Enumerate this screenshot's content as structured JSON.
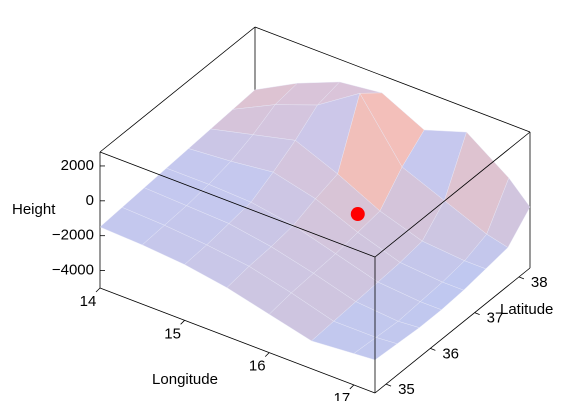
{
  "chart_data": {
    "type": "surface",
    "x_label": "Longitude",
    "y_label": "Latitude",
    "z_label": "Height",
    "xlim": [
      14,
      17.25
    ],
    "ylim": [
      34.75,
      38.25
    ],
    "zlim": [
      -5000,
      2800
    ],
    "xticks": [
      14,
      15,
      16,
      17
    ],
    "yticks": [
      35,
      36,
      37,
      38
    ],
    "zticks": [
      {
        "value": -4000,
        "label": "−4000"
      },
      {
        "value": -2000,
        "label": "−2000"
      },
      0,
      2000
    ],
    "x": [
      14,
      14.5,
      15,
      15.5,
      16,
      16.5,
      17,
      17.25
    ],
    "y": [
      34.75,
      35.25,
      35.75,
      36.25,
      36.75,
      37.25,
      37.75,
      38.25
    ],
    "z": [
      [
        -1500,
        -1600,
        -1800,
        -2200,
        -2800,
        -3400,
        -3200,
        -3100
      ],
      [
        -1400,
        -1500,
        -1700,
        -2000,
        -2600,
        -3300,
        -3300,
        -3200
      ],
      [
        -1300,
        -1400,
        -1500,
        -1900,
        -2500,
        -3200,
        -3400,
        -3300
      ],
      [
        -1200,
        -1200,
        -1300,
        -1700,
        -2400,
        -3100,
        -3300,
        -3300
      ],
      [
        -1100,
        -900,
        -600,
        -1200,
        -2200,
        -3000,
        -3200,
        -3200
      ],
      [
        -1000,
        -400,
        200,
        -800,
        -2000,
        -2800,
        -3000,
        -3000
      ],
      [
        -900,
        300,
        1200,
        2800,
        -500,
        -1500,
        -2500,
        -2800
      ],
      [
        -800,
        500,
        1500,
        1800,
        600,
        1400,
        -300,
        -1500
      ]
    ],
    "point": {
      "x": 15.67,
      "y": 37.38,
      "z": -3050,
      "color": "#ff0000"
    }
  }
}
